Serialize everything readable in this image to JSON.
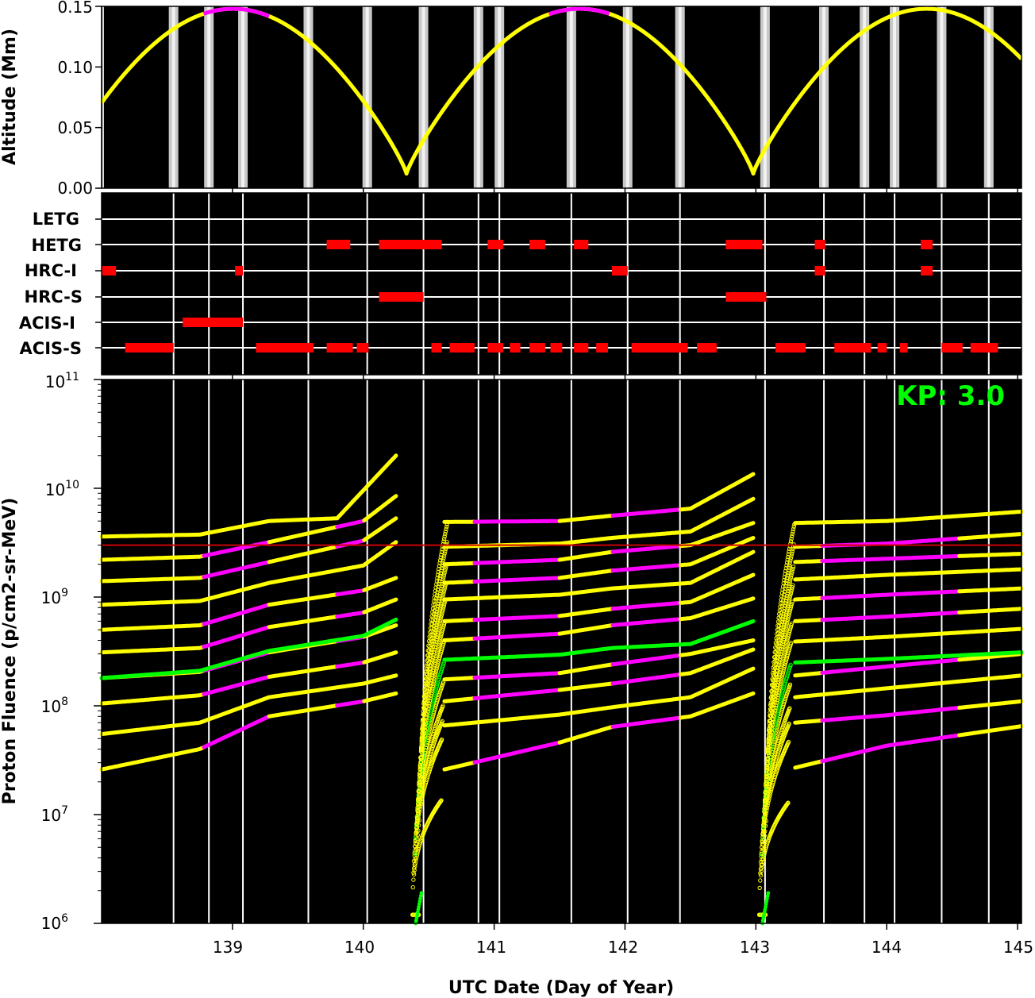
{
  "chart_data": [
    {
      "panel": "altitude",
      "type": "line",
      "ylabel": "Altitude (Mm)",
      "ylim": [
        0,
        0.15
      ],
      "yticks": [
        "0.00",
        "0.05",
        "0.10",
        "0.15"
      ],
      "xlim": [
        138.0,
        145.03
      ],
      "line_color": "#ffff00",
      "highlight_color": "#ff00ff",
      "perigees": [
        140.33,
        142.98
      ],
      "apogees": [
        139.0,
        141.65,
        144.32
      ],
      "max_altitude": 0.148,
      "min_altitude": 0.012,
      "highlight_segments": [
        [
          138.78,
          139.28
        ],
        [
          141.42,
          141.88
        ]
      ],
      "radiation_zone_bands": [
        138.55,
        138.82,
        139.08,
        139.58,
        140.03,
        140.46,
        140.88,
        141.04,
        141.59,
        142.02,
        142.42,
        143.07,
        143.52,
        143.83,
        144.06,
        144.42,
        144.78
      ]
    },
    {
      "panel": "instruments",
      "type": "timeline",
      "rows": [
        "LETG",
        "HETG",
        "HRC-I",
        "HRC-S",
        "ACIS-I",
        "ACIS-S"
      ],
      "bar_color": "#ff0000",
      "intervals": {
        "LETG": [],
        "HETG": [
          [
            139.72,
            139.9
          ],
          [
            140.12,
            140.6
          ],
          [
            140.95,
            141.07
          ],
          [
            141.27,
            141.39
          ],
          [
            141.61,
            141.72
          ],
          [
            142.77,
            143.05
          ],
          [
            143.45,
            143.53
          ],
          [
            144.26,
            144.35
          ]
        ],
        "HRC-I": [
          [
            138.0,
            138.11
          ],
          [
            139.02,
            139.08
          ],
          [
            141.9,
            142.02
          ],
          [
            143.45,
            143.53
          ],
          [
            144.26,
            144.35
          ]
        ],
        "HRC-S": [
          [
            140.12,
            140.46
          ],
          [
            142.77,
            143.08
          ]
        ],
        "ACIS-I": [
          [
            138.62,
            139.08
          ]
        ],
        "ACIS-S": [
          [
            138.18,
            138.55
          ],
          [
            139.18,
            139.62
          ],
          [
            139.72,
            139.92
          ],
          [
            139.95,
            140.04
          ],
          [
            140.52,
            140.6
          ],
          [
            140.66,
            140.85
          ],
          [
            140.95,
            141.07
          ],
          [
            141.12,
            141.2
          ],
          [
            141.27,
            141.39
          ],
          [
            141.43,
            141.52
          ],
          [
            141.61,
            141.72
          ],
          [
            141.78,
            141.87
          ],
          [
            142.05,
            142.48
          ],
          [
            142.55,
            142.7
          ],
          [
            143.15,
            143.38
          ],
          [
            143.6,
            143.88
          ],
          [
            143.93,
            144.0
          ],
          [
            144.1,
            144.16
          ],
          [
            144.42,
            144.58
          ],
          [
            144.64,
            144.85
          ]
        ]
      }
    },
    {
      "panel": "fluence",
      "type": "scatter",
      "ylabel": "Proton Fluence (p/cm2-sr-MeV)",
      "xlabel": "UTC Date (Day of Year)",
      "yscale": "log",
      "ylim": [
        1000000,
        100000000000
      ],
      "ytick_base": "10",
      "ytick_exponents": [
        "6",
        "7",
        "8",
        "9",
        "10",
        "11"
      ],
      "xticks": [
        "139",
        "140",
        "141",
        "142",
        "143",
        "144",
        "145"
      ],
      "xlim": [
        138.0,
        145.03
      ],
      "threshold": 3000000000,
      "threshold_color": "#cc0000",
      "annotation": "KP: 3.0",
      "series_colors": {
        "normal": "#ffff00",
        "kp_highlight": "#ff00ff",
        "reference": "#00ff00"
      },
      "reference_series_index": 4,
      "orbit_resets": [
        140.38,
        143.03
      ],
      "plateau_fluence_orbit2": [
        13500000.0,
        49000000.0,
        72000000.0,
        100000000.0,
        165000000.0,
        250000000.0,
        400000000.0,
        600000000.0,
        950000000.0,
        1350000000.0,
        2000000000.0,
        3200000000.0,
        4900000000.0
      ],
      "series": [
        {
          "values_orbit1": [
            [
              138.0,
              26000000.0
            ],
            [
              138.75,
              40000000.0
            ],
            [
              139.28,
              80000000.0
            ],
            [
              140.0,
              110000000.0
            ],
            [
              140.25,
              130000000.0
            ]
          ],
          "values_orbit2": [
            [
              140.62,
              26000000.0
            ],
            [
              141.5,
              46000000.0
            ],
            [
              141.9,
              64000000.0
            ],
            [
              142.5,
              80000000.0
            ],
            [
              142.98,
              130000000.0
            ]
          ],
          "values_orbit3": [
            [
              143.3,
              27000000.0
            ],
            [
              144.0,
              43000000.0
            ],
            [
              145.03,
              65000000.0
            ]
          ]
        },
        {
          "values_orbit1": [
            [
              138.0,
              55000000.0
            ],
            [
              138.75,
              70000000.0
            ],
            [
              139.28,
              120000000.0
            ],
            [
              140.0,
              160000000.0
            ],
            [
              140.25,
              190000000.0
            ]
          ],
          "values_orbit2": [
            [
              140.62,
              66000000.0
            ],
            [
              141.5,
              83000000.0
            ],
            [
              141.9,
              97000000.0
            ],
            [
              142.5,
              120000000.0
            ],
            [
              142.98,
              220000000.0
            ]
          ],
          "values_orbit3": [
            [
              143.3,
              70000000.0
            ],
            [
              144.0,
              82000000.0
            ],
            [
              145.03,
              110000000.0
            ]
          ]
        },
        {
          "values_orbit1": [
            [
              138.0,
              105000000.0
            ],
            [
              138.75,
              125000000.0
            ],
            [
              139.28,
              185000000.0
            ],
            [
              140.0,
              250000000.0
            ],
            [
              140.25,
              310000000.0
            ]
          ],
          "values_orbit2": [
            [
              140.62,
              110000000.0
            ],
            [
              141.5,
              140000000.0
            ],
            [
              141.9,
              160000000.0
            ],
            [
              142.5,
              200000000.0
            ],
            [
              142.98,
              330000000.0
            ]
          ],
          "values_orbit3": [
            [
              143.3,
              120000000.0
            ],
            [
              144.0,
              145000000.0
            ],
            [
              145.03,
              190000000.0
            ]
          ]
        },
        {
          "values_orbit1": [
            [
              138.0,
              180000000.0
            ],
            [
              138.75,
              205000000.0
            ],
            [
              139.28,
              310000000.0
            ],
            [
              140.0,
              430000000.0
            ],
            [
              140.25,
              550000000.0
            ]
          ],
          "values_orbit2": [
            [
              140.62,
              175000000.0
            ],
            [
              141.5,
              200000000.0
            ],
            [
              141.9,
              240000000.0
            ],
            [
              142.5,
              300000000.0
            ],
            [
              142.98,
              400000000.0
            ]
          ],
          "values_orbit3": [
            [
              143.3,
              190000000.0
            ],
            [
              144.0,
              230000000.0
            ],
            [
              145.03,
              300000000.0
            ]
          ]
        },
        {
          "values_orbit1": [
            [
              138.0,
              180000000.0
            ],
            [
              138.75,
              210000000.0
            ],
            [
              139.28,
              320000000.0
            ],
            [
              140.0,
              440000000.0
            ],
            [
              140.25,
              620000000.0
            ]
          ],
          "values_orbit2": [
            [
              140.62,
              265000000.0
            ],
            [
              141.5,
              295000000.0
            ],
            [
              141.9,
              340000000.0
            ],
            [
              142.5,
              370000000.0
            ],
            [
              142.98,
              600000000.0
            ]
          ],
          "values_orbit3": [
            [
              143.3,
              250000000.0
            ],
            [
              144.0,
              270000000.0
            ],
            [
              145.03,
              310000000.0
            ]
          ]
        },
        {
          "values_orbit1": [
            [
              138.0,
              310000000.0
            ],
            [
              138.75,
              340000000.0
            ],
            [
              139.28,
              530000000.0
            ],
            [
              140.0,
              720000000.0
            ],
            [
              140.25,
              950000000.0
            ]
          ],
          "values_orbit2": [
            [
              140.62,
              400000000.0
            ],
            [
              141.5,
              460000000.0
            ],
            [
              141.9,
              550000000.0
            ],
            [
              142.5,
              640000000.0
            ],
            [
              142.98,
              970000000.0
            ]
          ],
          "values_orbit3": [
            [
              143.3,
              390000000.0
            ],
            [
              144.0,
              430000000.0
            ],
            [
              145.03,
              510000000.0
            ]
          ]
        },
        {
          "values_orbit1": [
            [
              138.0,
              500000000.0
            ],
            [
              138.75,
              550000000.0
            ],
            [
              139.28,
              850000000.0
            ],
            [
              140.0,
              1150000000.0
            ],
            [
              140.25,
              1500000000.0
            ]
          ],
          "values_orbit2": [
            [
              140.62,
              600000000.0
            ],
            [
              141.5,
              670000000.0
            ],
            [
              141.9,
              780000000.0
            ],
            [
              142.5,
              900000000.0
            ],
            [
              142.98,
              1600000000.0
            ]
          ],
          "values_orbit3": [
            [
              143.3,
              600000000.0
            ],
            [
              144.0,
              660000000.0
            ],
            [
              145.03,
              780000000.0
            ]
          ]
        },
        {
          "values_orbit1": [
            [
              138.0,
              850000000.0
            ],
            [
              138.75,
              920000000.0
            ],
            [
              139.28,
              1350000000.0
            ],
            [
              140.0,
              1950000000.0
            ],
            [
              140.25,
              3200000000.0
            ]
          ],
          "values_orbit2": [
            [
              140.62,
              950000000.0
            ],
            [
              141.5,
              1050000000.0
            ],
            [
              141.9,
              1200000000.0
            ],
            [
              142.5,
              1350000000.0
            ],
            [
              142.98,
              2600000000.0
            ]
          ],
          "values_orbit3": [
            [
              143.3,
              950000000.0
            ],
            [
              144.0,
              1050000000.0
            ],
            [
              145.03,
              1200000000.0
            ]
          ]
        },
        {
          "values_orbit1": [
            [
              138.0,
              1400000000.0
            ],
            [
              138.75,
              1500000000.0
            ],
            [
              139.28,
              2100000000.0
            ],
            [
              140.0,
              3300000000.0
            ],
            [
              140.25,
              5300000000.0
            ]
          ],
          "values_orbit2": [
            [
              140.62,
              1350000000.0
            ],
            [
              141.5,
              1500000000.0
            ],
            [
              141.9,
              1750000000.0
            ],
            [
              142.5,
              2000000000.0
            ],
            [
              142.98,
              3500000000.0
            ]
          ],
          "values_orbit3": [
            [
              143.3,
              1450000000.0
            ],
            [
              144.0,
              1600000000.0
            ],
            [
              145.03,
              1800000000.0
            ]
          ]
        },
        {
          "values_orbit1": [
            [
              138.0,
              2200000000.0
            ],
            [
              138.75,
              2350000000.0
            ],
            [
              139.28,
              3200000000.0
            ],
            [
              140.0,
              5000000000.0
            ],
            [
              140.25,
              8500000000.0
            ]
          ],
          "values_orbit2": [
            [
              140.62,
              2000000000.0
            ],
            [
              141.5,
              2200000000.0
            ],
            [
              141.9,
              2600000000.0
            ],
            [
              142.5,
              3000000000.0
            ],
            [
              142.98,
              4800000000.0
            ]
          ],
          "values_orbit3": [
            [
              143.3,
              2100000000.0
            ],
            [
              144.0,
              2250000000.0
            ],
            [
              145.03,
              2500000000.0
            ]
          ]
        },
        {
          "values_orbit1": [
            [
              138.0,
              3600000000.0
            ],
            [
              138.75,
              3750000000.0
            ],
            [
              139.28,
              5000000000.0
            ],
            [
              139.8,
              5300000000.0
            ],
            [
              140.25,
              20000000000.0
            ]
          ],
          "values_orbit2": [
            [
              140.62,
              2900000000.0
            ],
            [
              141.5,
              3100000000.0
            ],
            [
              141.9,
              3500000000.0
            ],
            [
              142.5,
              4000000000.0
            ],
            [
              142.98,
              8000000000.0
            ]
          ],
          "values_orbit3": [
            [
              143.3,
              2900000000.0
            ],
            [
              144.0,
              3100000000.0
            ],
            [
              145.03,
              3800000000.0
            ]
          ]
        },
        {
          "values_orbit2": [
            [
              140.62,
              4900000000.0
            ],
            [
              141.5,
              5000000000.0
            ],
            [
              141.9,
              5600000000.0
            ],
            [
              142.5,
              6500000000.0
            ],
            [
              142.98,
              13500000000.0
            ]
          ],
          "values_orbit3": [
            [
              143.3,
              4800000000.0
            ],
            [
              144.0,
              5000000000.0
            ],
            [
              145.03,
              6100000000.0
            ]
          ]
        }
      ]
    }
  ]
}
